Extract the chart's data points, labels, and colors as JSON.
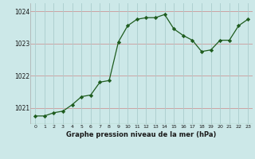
{
  "x": [
    0,
    1,
    2,
    3,
    4,
    5,
    6,
    7,
    8,
    9,
    10,
    11,
    12,
    13,
    14,
    15,
    16,
    17,
    18,
    19,
    20,
    21,
    22,
    23
  ],
  "y": [
    1020.75,
    1020.75,
    1020.85,
    1020.9,
    1021.1,
    1021.35,
    1021.4,
    1021.8,
    1021.85,
    1023.05,
    1023.55,
    1023.75,
    1023.8,
    1023.8,
    1023.9,
    1023.45,
    1023.25,
    1023.1,
    1022.75,
    1022.8,
    1023.1,
    1023.1,
    1023.55,
    1023.75
  ],
  "bg_color": "#cce8e8",
  "line_color": "#1e5c1e",
  "marker_color": "#1e5c1e",
  "grid_color_h": "#cc9999",
  "grid_color_v": "#aacccc",
  "xlabel": "Graphe pression niveau de la mer (hPa)",
  "yticks": [
    1021,
    1022,
    1023,
    1024
  ],
  "xticks": [
    0,
    1,
    2,
    3,
    4,
    5,
    6,
    7,
    8,
    9,
    10,
    11,
    12,
    13,
    14,
    15,
    16,
    17,
    18,
    19,
    20,
    21,
    22,
    23
  ],
  "ylim": [
    1020.5,
    1024.25
  ],
  "xlim": [
    -0.5,
    23.5
  ]
}
